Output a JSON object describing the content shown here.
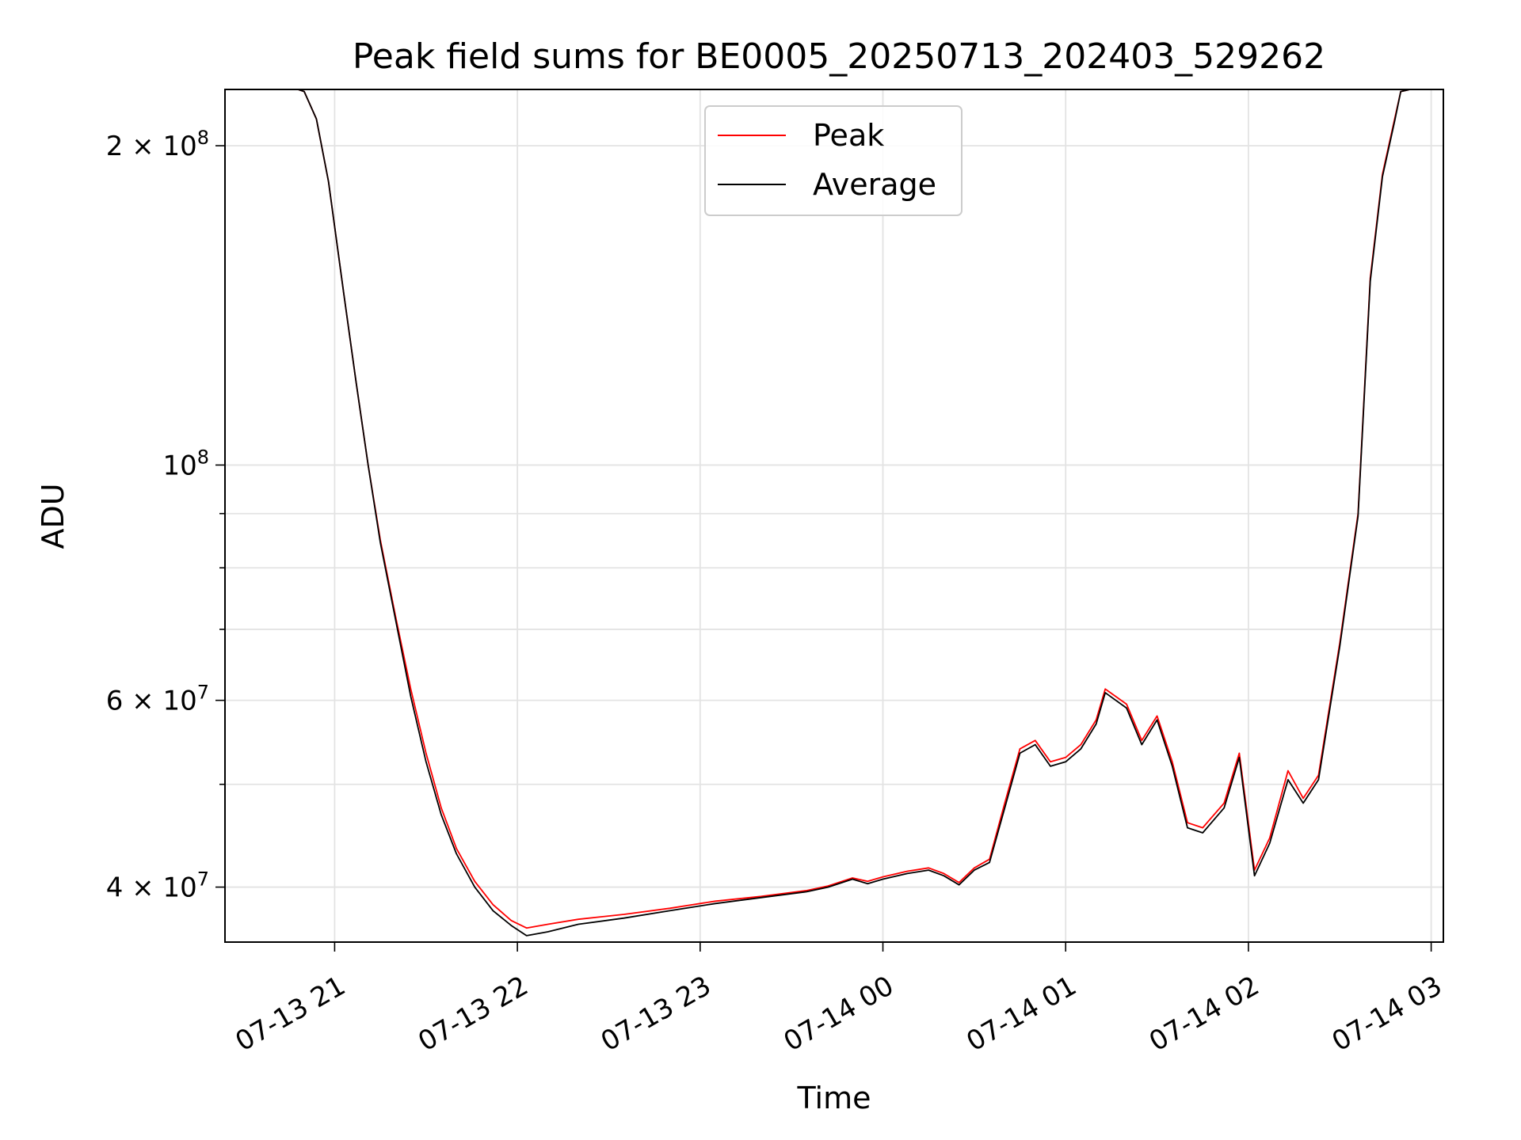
{
  "chart_data": {
    "type": "line",
    "title": "Peak field sums for BE0005_20250713_202403_529262",
    "xlabel": "Time",
    "ylabel": "ADU",
    "yscale": "log",
    "ylim": [
      35500000,
      226000000
    ],
    "xlim": [
      "07-13 20:24",
      "07-14 03:04"
    ],
    "grid": true,
    "legend_position": "upper-center",
    "x_ticks": [
      {
        "time": "07-13 21:00",
        "label": "07-13 21"
      },
      {
        "time": "07-13 22:00",
        "label": "07-13 22"
      },
      {
        "time": "07-13 23:00",
        "label": "07-13 23"
      },
      {
        "time": "07-14 00:00",
        "label": "07-14 00"
      },
      {
        "time": "07-14 01:00",
        "label": "07-14 01"
      },
      {
        "time": "07-14 02:00",
        "label": "07-14 02"
      },
      {
        "time": "07-14 03:00",
        "label": "07-14 03"
      }
    ],
    "y_ticks": [
      {
        "value": 40000000,
        "label": "4 × 10",
        "exp": "7"
      },
      {
        "value": 60000000,
        "label": "6 × 10",
        "exp": "7"
      },
      {
        "value": 100000000,
        "label": "10",
        "exp": "8"
      },
      {
        "value": 200000000,
        "label": "2 × 10",
        "exp": "8"
      }
    ],
    "y_minor_ticks": [
      50000000,
      70000000,
      80000000,
      90000000
    ],
    "series": [
      {
        "name": "Peak",
        "color": "#ff0000",
        "x": [
          "07-13 20:48",
          "07-13 20:50",
          "07-13 20:54",
          "07-13 20:58",
          "07-13 21:03",
          "07-13 21:07",
          "07-13 21:11",
          "07-13 21:15",
          "07-13 21:20",
          "07-13 21:25",
          "07-13 21:30",
          "07-13 21:35",
          "07-13 21:40",
          "07-13 21:46",
          "07-13 21:52",
          "07-13 21:58",
          "07-13 22:03",
          "07-13 22:10",
          "07-13 22:20",
          "07-13 22:35",
          "07-13 22:50",
          "07-13 23:05",
          "07-13 23:20",
          "07-13 23:35",
          "07-13 23:42",
          "07-13 23:50",
          "07-13 23:55",
          "07-14 00:00",
          "07-14 00:08",
          "07-14 00:15",
          "07-14 00:20",
          "07-14 00:25",
          "07-14 00:30",
          "07-14 00:35",
          "07-14 00:40",
          "07-14 00:45",
          "07-14 00:50",
          "07-14 00:55",
          "07-14 01:00",
          "07-14 01:05",
          "07-14 01:10",
          "07-14 01:13",
          "07-14 01:20",
          "07-14 01:25",
          "07-14 01:30",
          "07-14 01:35",
          "07-14 01:40",
          "07-14 01:45",
          "07-14 01:52",
          "07-14 01:57",
          "07-14 02:02",
          "07-14 02:07",
          "07-14 02:13",
          "07-14 02:18",
          "07-14 02:23",
          "07-14 02:30",
          "07-14 02:36",
          "07-14 02:40",
          "07-14 02:44",
          "07-14 02:48",
          "07-14 02:50",
          "07-14 02:53",
          "07-14 02:56"
        ],
        "y": [
          226000000,
          225000000,
          212000000,
          185000000,
          145000000,
          120000000,
          100000000,
          85000000,
          72000000,
          61500000,
          53500000,
          47500000,
          43500000,
          40500000,
          38500000,
          37200000,
          36600000,
          36900000,
          37300000,
          37700000,
          38200000,
          38800000,
          39200000,
          39700000,
          40100000,
          40800000,
          40500000,
          40900000,
          41400000,
          41700000,
          41200000,
          40400000,
          41700000,
          42500000,
          48000000,
          54000000,
          55000000,
          52500000,
          53000000,
          54500000,
          57500000,
          61500000,
          59500000,
          55000000,
          58000000,
          52500000,
          46000000,
          45500000,
          48000000,
          53500000,
          41500000,
          44500000,
          51500000,
          48500000,
          51000000,
          68000000,
          90000000,
          150000000,
          188000000,
          212000000,
          225000000,
          226000000,
          226000000
        ]
      },
      {
        "name": "Average",
        "color": "#000000",
        "x": [
          "07-13 20:48",
          "07-13 20:50",
          "07-13 20:54",
          "07-13 20:58",
          "07-13 21:03",
          "07-13 21:07",
          "07-13 21:11",
          "07-13 21:15",
          "07-13 21:20",
          "07-13 21:25",
          "07-13 21:30",
          "07-13 21:35",
          "07-13 21:40",
          "07-13 21:46",
          "07-13 21:52",
          "07-13 21:58",
          "07-13 22:03",
          "07-13 22:10",
          "07-13 22:20",
          "07-13 22:35",
          "07-13 22:50",
          "07-13 23:05",
          "07-13 23:20",
          "07-13 23:35",
          "07-13 23:42",
          "07-13 23:50",
          "07-13 23:55",
          "07-14 00:00",
          "07-14 00:08",
          "07-14 00:15",
          "07-14 00:20",
          "07-14 00:25",
          "07-14 00:30",
          "07-14 00:35",
          "07-14 00:40",
          "07-14 00:45",
          "07-14 00:50",
          "07-14 00:55",
          "07-14 01:00",
          "07-14 01:05",
          "07-14 01:10",
          "07-14 01:13",
          "07-14 01:20",
          "07-14 01:25",
          "07-14 01:30",
          "07-14 01:35",
          "07-14 01:40",
          "07-14 01:45",
          "07-14 01:52",
          "07-14 01:57",
          "07-14 02:02",
          "07-14 02:07",
          "07-14 02:13",
          "07-14 02:18",
          "07-14 02:23",
          "07-14 02:30",
          "07-14 02:36",
          "07-14 02:40",
          "07-14 02:44",
          "07-14 02:48",
          "07-14 02:50",
          "07-14 02:53",
          "07-14 02:56"
        ],
        "y": [
          226000000,
          225000000,
          212000000,
          185000000,
          145000000,
          120000000,
          100000000,
          84500000,
          71500000,
          60500000,
          52500000,
          46800000,
          43000000,
          40000000,
          38000000,
          36800000,
          36000000,
          36300000,
          36900000,
          37400000,
          38000000,
          38600000,
          39100000,
          39600000,
          40000000,
          40700000,
          40300000,
          40700000,
          41200000,
          41500000,
          41000000,
          40200000,
          41500000,
          42200000,
          47500000,
          53500000,
          54500000,
          52000000,
          52500000,
          54000000,
          57000000,
          61000000,
          59000000,
          54500000,
          57500000,
          52000000,
          45500000,
          45000000,
          47500000,
          53000000,
          41000000,
          44000000,
          50500000,
          48000000,
          50500000,
          67500000,
          89500000,
          149000000,
          187000000,
          211000000,
          225000000,
          226000000,
          226000000
        ]
      }
    ]
  }
}
